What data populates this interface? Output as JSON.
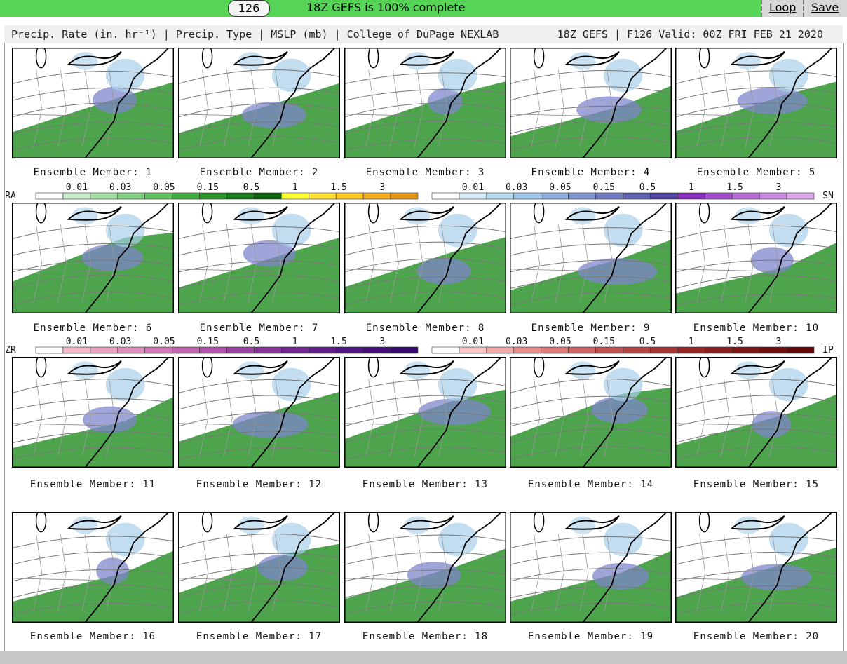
{
  "toolbar": {
    "frame": "126",
    "status": "18Z GEFS is 100% complete",
    "buttons": [
      "Loop",
      "Save"
    ]
  },
  "header": {
    "left": "Precip. Rate (in. hr⁻¹) | Precip. Type | MSLP (mb) | College of DuPage NEXLAB",
    "right": "18Z GEFS | F126 Valid: 00Z FRI FEB 21 2020"
  },
  "panels": [
    {
      "label": "Ensemble Member: 1"
    },
    {
      "label": "Ensemble Member: 2"
    },
    {
      "label": "Ensemble Member: 3"
    },
    {
      "label": "Ensemble Member: 4"
    },
    {
      "label": "Ensemble Member: 5"
    },
    {
      "label": "Ensemble Member: 6"
    },
    {
      "label": "Ensemble Member: 7"
    },
    {
      "label": "Ensemble Member: 8"
    },
    {
      "label": "Ensemble Member: 9"
    },
    {
      "label": "Ensemble Member: 10"
    },
    {
      "label": "Ensemble Member: 11"
    },
    {
      "label": "Ensemble Member: 12"
    },
    {
      "label": "Ensemble Member: 13"
    },
    {
      "label": "Ensemble Member: 14"
    },
    {
      "label": "Ensemble Member: 15"
    },
    {
      "label": "Ensemble Member: 16"
    },
    {
      "label": "Ensemble Member: 17"
    },
    {
      "label": "Ensemble Member: 18"
    },
    {
      "label": "Ensemble Member: 19"
    },
    {
      "label": "Ensemble Member: 20"
    }
  ],
  "legends": [
    {
      "code": "RA",
      "labels": [
        "0.01",
        "0.03",
        "0.05",
        "0.15",
        "0.5",
        "1",
        "1.5",
        "3"
      ],
      "colors": [
        "#ffffff",
        "#c8ecc8",
        "#a6dfa6",
        "#82d282",
        "#5fc35f",
        "#3fae3f",
        "#2a962a",
        "#1b7d1b",
        "#0f640f",
        "#ffff33",
        "#ffe033",
        "#ffc826",
        "#f5ad1f",
        "#e8961a"
      ]
    },
    {
      "code": "SN",
      "labels": [
        "0.01",
        "0.03",
        "0.05",
        "0.15",
        "0.5",
        "1",
        "1.5",
        "3"
      ],
      "colors": [
        "#ffffff",
        "#d3ecf7",
        "#b5dcef",
        "#a0c8e8",
        "#8fb0de",
        "#7f96d2",
        "#6f7cc4",
        "#5f62b5",
        "#5046a2",
        "#8a2fc0",
        "#a14ccc",
        "#b86ad8",
        "#cc89e2",
        "#dca8ea"
      ]
    },
    {
      "code": "ZR",
      "labels": [
        "0.01",
        "0.03",
        "0.05",
        "0.15",
        "0.5",
        "1",
        "1.5",
        "3"
      ],
      "colors": [
        "#ffffff",
        "#f3b8c8",
        "#e8a2c0",
        "#dc8cb8",
        "#cf78b4",
        "#c064b0",
        "#ae52aa",
        "#9a42a2",
        "#86349a",
        "#722892",
        "#601e8a",
        "#501682",
        "#420f78",
        "#36096e"
      ]
    },
    {
      "code": "IP",
      "labels": [
        "0.01",
        "0.03",
        "0.05",
        "0.15",
        "0.5",
        "1",
        "1.5",
        "3"
      ],
      "colors": [
        "#ffffff",
        "#f8c4c4",
        "#f0a8a8",
        "#e68e8e",
        "#dc7878",
        "#d06464",
        "#c25252",
        "#b44242",
        "#a63434",
        "#982828",
        "#8a1e1e",
        "#7c1616",
        "#6e0e0e",
        "#600808"
      ]
    }
  ]
}
